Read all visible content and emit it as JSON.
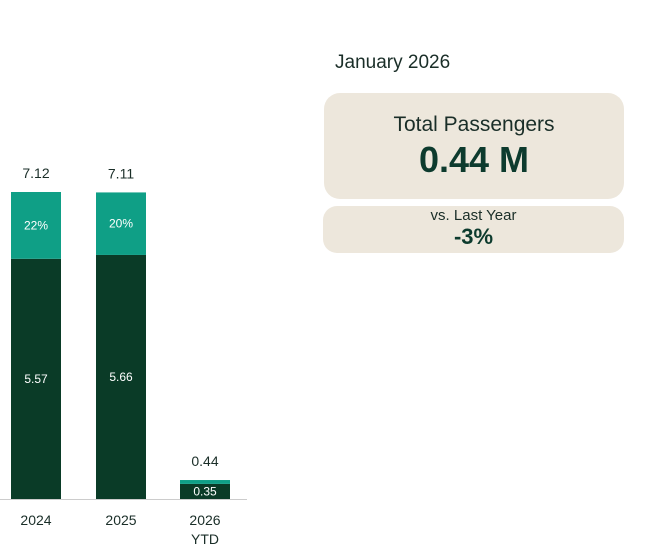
{
  "kpi": {
    "period": "January 2026",
    "main_title": "Total Passengers",
    "main_value": "0.44 M",
    "sub_title": "vs. Last Year",
    "sub_value": "-3%"
  },
  "colors": {
    "dark_segment": "#0a3b27",
    "light_segment": "#0f9f86",
    "card_bg": "#ede7dc",
    "axis": "#cccccc"
  },
  "chart_data": {
    "type": "bar",
    "stacked": true,
    "title": "",
    "xlabel": "",
    "ylabel": "",
    "ylim": [
      0,
      7.12
    ],
    "categories": [
      "2024",
      "2025",
      "2026\nYTD"
    ],
    "totals": [
      "7.12",
      "7.11",
      "0.44"
    ],
    "series": [
      {
        "name": "base",
        "values": [
          5.57,
          5.66,
          0.35
        ],
        "labels": [
          "5.57",
          "5.66",
          "0.35"
        ],
        "color": "#0a3b27"
      },
      {
        "name": "top",
        "values": [
          1.55,
          1.45,
          0.09
        ],
        "labels": [
          "22%",
          "20%",
          ""
        ],
        "color": "#0f9f86"
      }
    ]
  }
}
